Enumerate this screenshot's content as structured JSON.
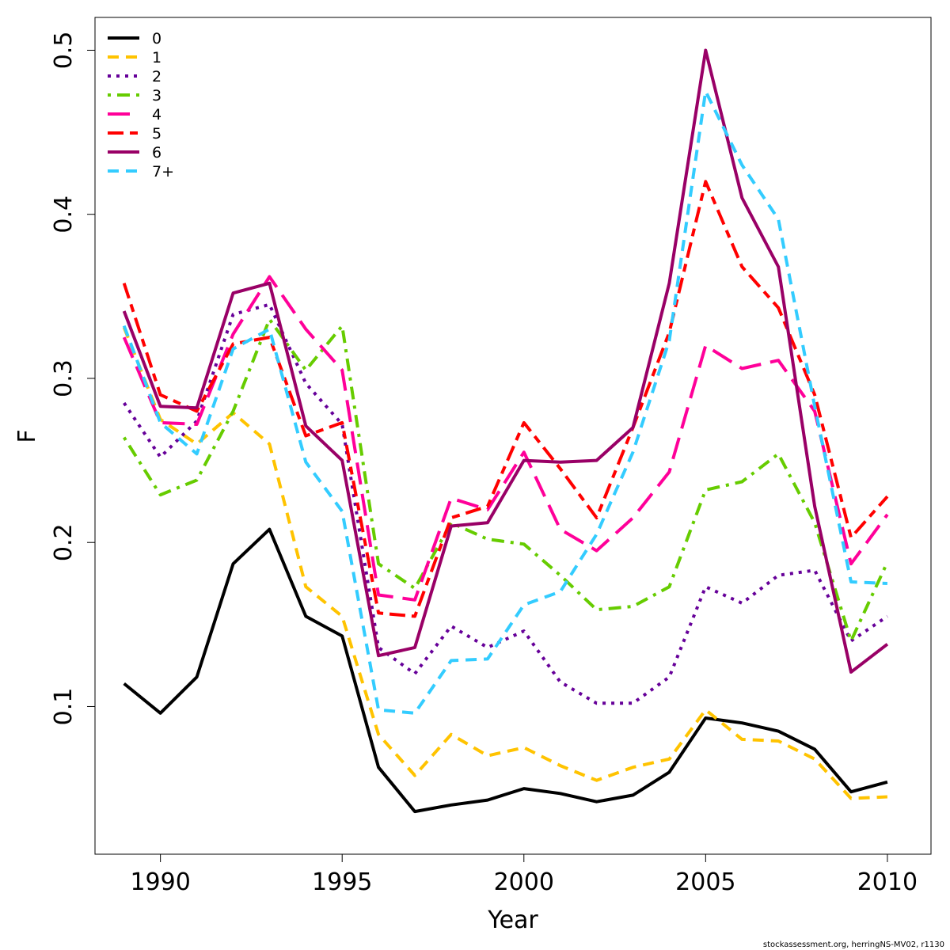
{
  "chart_data": {
    "type": "line",
    "xlabel": "Year",
    "ylabel": "F",
    "xlim": [
      1988.2,
      2011.2
    ],
    "ylim": [
      0.01,
      0.52
    ],
    "x_ticks": [
      1990,
      1995,
      2000,
      2005,
      2010
    ],
    "y_ticks": [
      0.1,
      0.2,
      0.3,
      0.4,
      0.5
    ],
    "grid": false,
    "legend_position": "top-left",
    "x": [
      1989,
      1990,
      1991,
      1992,
      1993,
      1994,
      1995,
      1996,
      1997,
      1998,
      1999,
      2000,
      2001,
      2002,
      2003,
      2004,
      2005,
      2006,
      2007,
      2008,
      2009,
      2010
    ],
    "series": [
      {
        "name": "0",
        "color": "#000000",
        "dash": "solid",
        "values": [
          0.114,
          0.096,
          0.118,
          0.187,
          0.208,
          0.155,
          0.143,
          0.063,
          0.036,
          0.04,
          0.043,
          0.05,
          0.047,
          0.042,
          0.046,
          0.06,
          0.093,
          0.09,
          0.085,
          0.074,
          0.048,
          0.054
        ]
      },
      {
        "name": "1",
        "color": "#FFC300",
        "dash": "dashed",
        "values": [
          0.331,
          0.275,
          0.26,
          0.279,
          0.26,
          0.173,
          0.155,
          0.083,
          0.058,
          0.083,
          0.07,
          0.075,
          0.064,
          0.055,
          0.063,
          0.068,
          0.098,
          0.08,
          0.079,
          0.068,
          0.044,
          0.045
        ]
      },
      {
        "name": "2",
        "color": "#660099",
        "dash": "dotted",
        "values": [
          0.285,
          0.252,
          0.274,
          0.339,
          0.345,
          0.297,
          0.272,
          0.136,
          0.12,
          0.149,
          0.136,
          0.146,
          0.115,
          0.102,
          0.102,
          0.118,
          0.173,
          0.163,
          0.18,
          0.183,
          0.14,
          0.155
        ]
      },
      {
        "name": "3",
        "color": "#66CC00",
        "dash": "dotdash",
        "values": [
          0.264,
          0.229,
          0.238,
          0.28,
          0.336,
          0.305,
          0.332,
          0.187,
          0.172,
          0.212,
          0.202,
          0.199,
          0.18,
          0.159,
          0.161,
          0.173,
          0.232,
          0.237,
          0.254,
          0.212,
          0.14,
          0.188
        ]
      },
      {
        "name": "4",
        "color": "#FF0099",
        "dash": "longdash",
        "values": [
          0.325,
          0.273,
          0.272,
          0.327,
          0.362,
          0.33,
          0.305,
          0.168,
          0.165,
          0.227,
          0.22,
          0.255,
          0.208,
          0.195,
          0.215,
          0.243,
          0.32,
          0.306,
          0.311,
          0.28,
          0.187,
          0.217
        ]
      },
      {
        "name": "5",
        "color": "#FF0000",
        "dash": "twodash",
        "values": [
          0.358,
          0.29,
          0.28,
          0.321,
          0.325,
          0.265,
          0.273,
          0.157,
          0.155,
          0.215,
          0.222,
          0.273,
          0.245,
          0.215,
          0.27,
          0.328,
          0.42,
          0.368,
          0.343,
          0.29,
          0.203,
          0.228
        ]
      },
      {
        "name": "6",
        "color": "#990066",
        "dash": "solid",
        "values": [
          0.341,
          0.283,
          0.282,
          0.352,
          0.358,
          0.271,
          0.25,
          0.131,
          0.136,
          0.21,
          0.212,
          0.25,
          0.249,
          0.25,
          0.27,
          0.358,
          0.5,
          0.41,
          0.368,
          0.222,
          0.121,
          0.138
        ]
      },
      {
        "name": "7+",
        "color": "#33CCFF",
        "dash": "dashed",
        "values": [
          0.332,
          0.273,
          0.254,
          0.318,
          0.33,
          0.249,
          0.219,
          0.098,
          0.096,
          0.128,
          0.129,
          0.162,
          0.17,
          0.205,
          0.255,
          0.323,
          0.475,
          0.43,
          0.397,
          0.283,
          0.176,
          0.175
        ]
      }
    ]
  },
  "footnote": "stockassessment.org, herringNS-MV02, r1130"
}
